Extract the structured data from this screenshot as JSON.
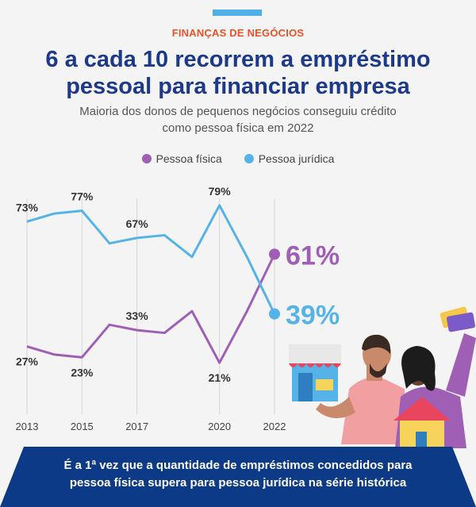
{
  "header": {
    "kicker": "FINANÇAS DE NEGÓCIOS",
    "title_line1": "6 a cada 10 recorrem a empréstimo",
    "title_line2": "pessoal para financiar empresa",
    "subtitle_line1": "Maioria dos donos de pequenos negócios conseguiu crédito",
    "subtitle_line2": "como pessoa física em 2022"
  },
  "colors": {
    "pf": "#9e5fb5",
    "pj": "#55b3e8",
    "title": "#1d3a8a",
    "kicker": "#e8532a",
    "banner": "#0d3a86"
  },
  "chart_data": {
    "type": "line",
    "x": [
      2013,
      2014,
      2015,
      2016,
      2017,
      2018,
      2019,
      2020,
      2021,
      2022
    ],
    "tick_labels": [
      "2013",
      "2015",
      "2017",
      "2020",
      "2022"
    ],
    "tick_years": [
      2013,
      2015,
      2017,
      2020,
      2022
    ],
    "ylim": [
      0,
      100
    ],
    "series": [
      {
        "name": "Pessoa física",
        "key": "pf",
        "values": [
          27,
          24,
          23,
          35,
          33,
          32,
          40,
          21,
          40,
          61
        ],
        "labels": [
          {
            "year": 2013,
            "text": "27%"
          },
          {
            "year": 2015,
            "text": "23%"
          },
          {
            "year": 2017,
            "text": "33%"
          },
          {
            "year": 2020,
            "text": "21%"
          }
        ],
        "end_label": "61%"
      },
      {
        "name": "Pessoa jurídica",
        "key": "pj",
        "values": [
          73,
          76,
          77,
          65,
          67,
          68,
          60,
          79,
          60,
          39
        ],
        "labels": [
          {
            "year": 2013,
            "text": "73%"
          },
          {
            "year": 2015,
            "text": "77%"
          },
          {
            "year": 2017,
            "text": "67%"
          },
          {
            "year": 2020,
            "text": "79%"
          }
        ],
        "end_label": "39%"
      }
    ],
    "legend": "top",
    "grid": "vertical-at-ticks"
  },
  "footer": {
    "line1": "É a 1ª vez que a quantidade de empréstimos concedidos para",
    "line2": "pessoa física supera para pessoa jurídica na série histórica"
  }
}
